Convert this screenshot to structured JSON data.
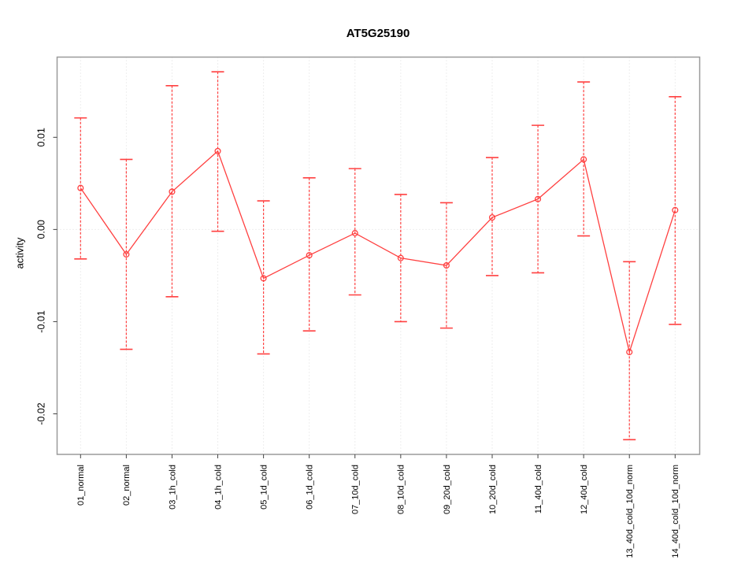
{
  "title": "AT5G25190",
  "chart_data": {
    "type": "line",
    "title": "AT5G25190",
    "xlabel": "",
    "ylabel": "activity",
    "categories": [
      "01_normal",
      "02_normal",
      "03_1h_cold",
      "04_1h_cold",
      "05_1d_cold",
      "06_1d_cold",
      "07_10d_cold",
      "08_10d_cold",
      "09_20d_cold",
      "10_20d_cold",
      "11_40d_cold",
      "12_40d_cold",
      "13_40d_cold_10d_norm",
      "14_40d_cold_10d_norm"
    ],
    "series": [
      {
        "name": "activity",
        "values": [
          0.0045,
          -0.0027,
          0.0041,
          0.0085,
          -0.0053,
          -0.0028,
          -0.0004,
          -0.0031,
          -0.0039,
          0.0013,
          0.0033,
          0.0076,
          -0.0133,
          0.0021
        ],
        "upper": [
          0.0121,
          0.0076,
          0.0156,
          0.0171,
          0.0031,
          0.0056,
          0.0066,
          0.0038,
          0.0029,
          0.0078,
          0.0113,
          0.016,
          -0.0035,
          0.0144
        ],
        "lower": [
          -0.0032,
          -0.013,
          -0.0073,
          -0.0002,
          -0.0135,
          -0.011,
          -0.0071,
          -0.01,
          -0.0107,
          -0.005,
          -0.0047,
          -0.0007,
          -0.0228,
          -0.0103
        ]
      }
    ],
    "ylim": [
      -0.0244,
      0.0187
    ],
    "yticks": [
      0.01,
      0.0,
      -0.01,
      -0.02
    ],
    "ytick_labels": [
      "0.01",
      "0.00",
      "-0.01",
      "-0.02"
    ],
    "legend": "none",
    "grid": "dotted vertical line at each category; dotted horizontal line at y=0",
    "colors": {
      "series": "#ff4040",
      "grid": "#dcdcdc",
      "box": "#9a9a9a",
      "tick": "#444444",
      "text": "#000000"
    }
  }
}
